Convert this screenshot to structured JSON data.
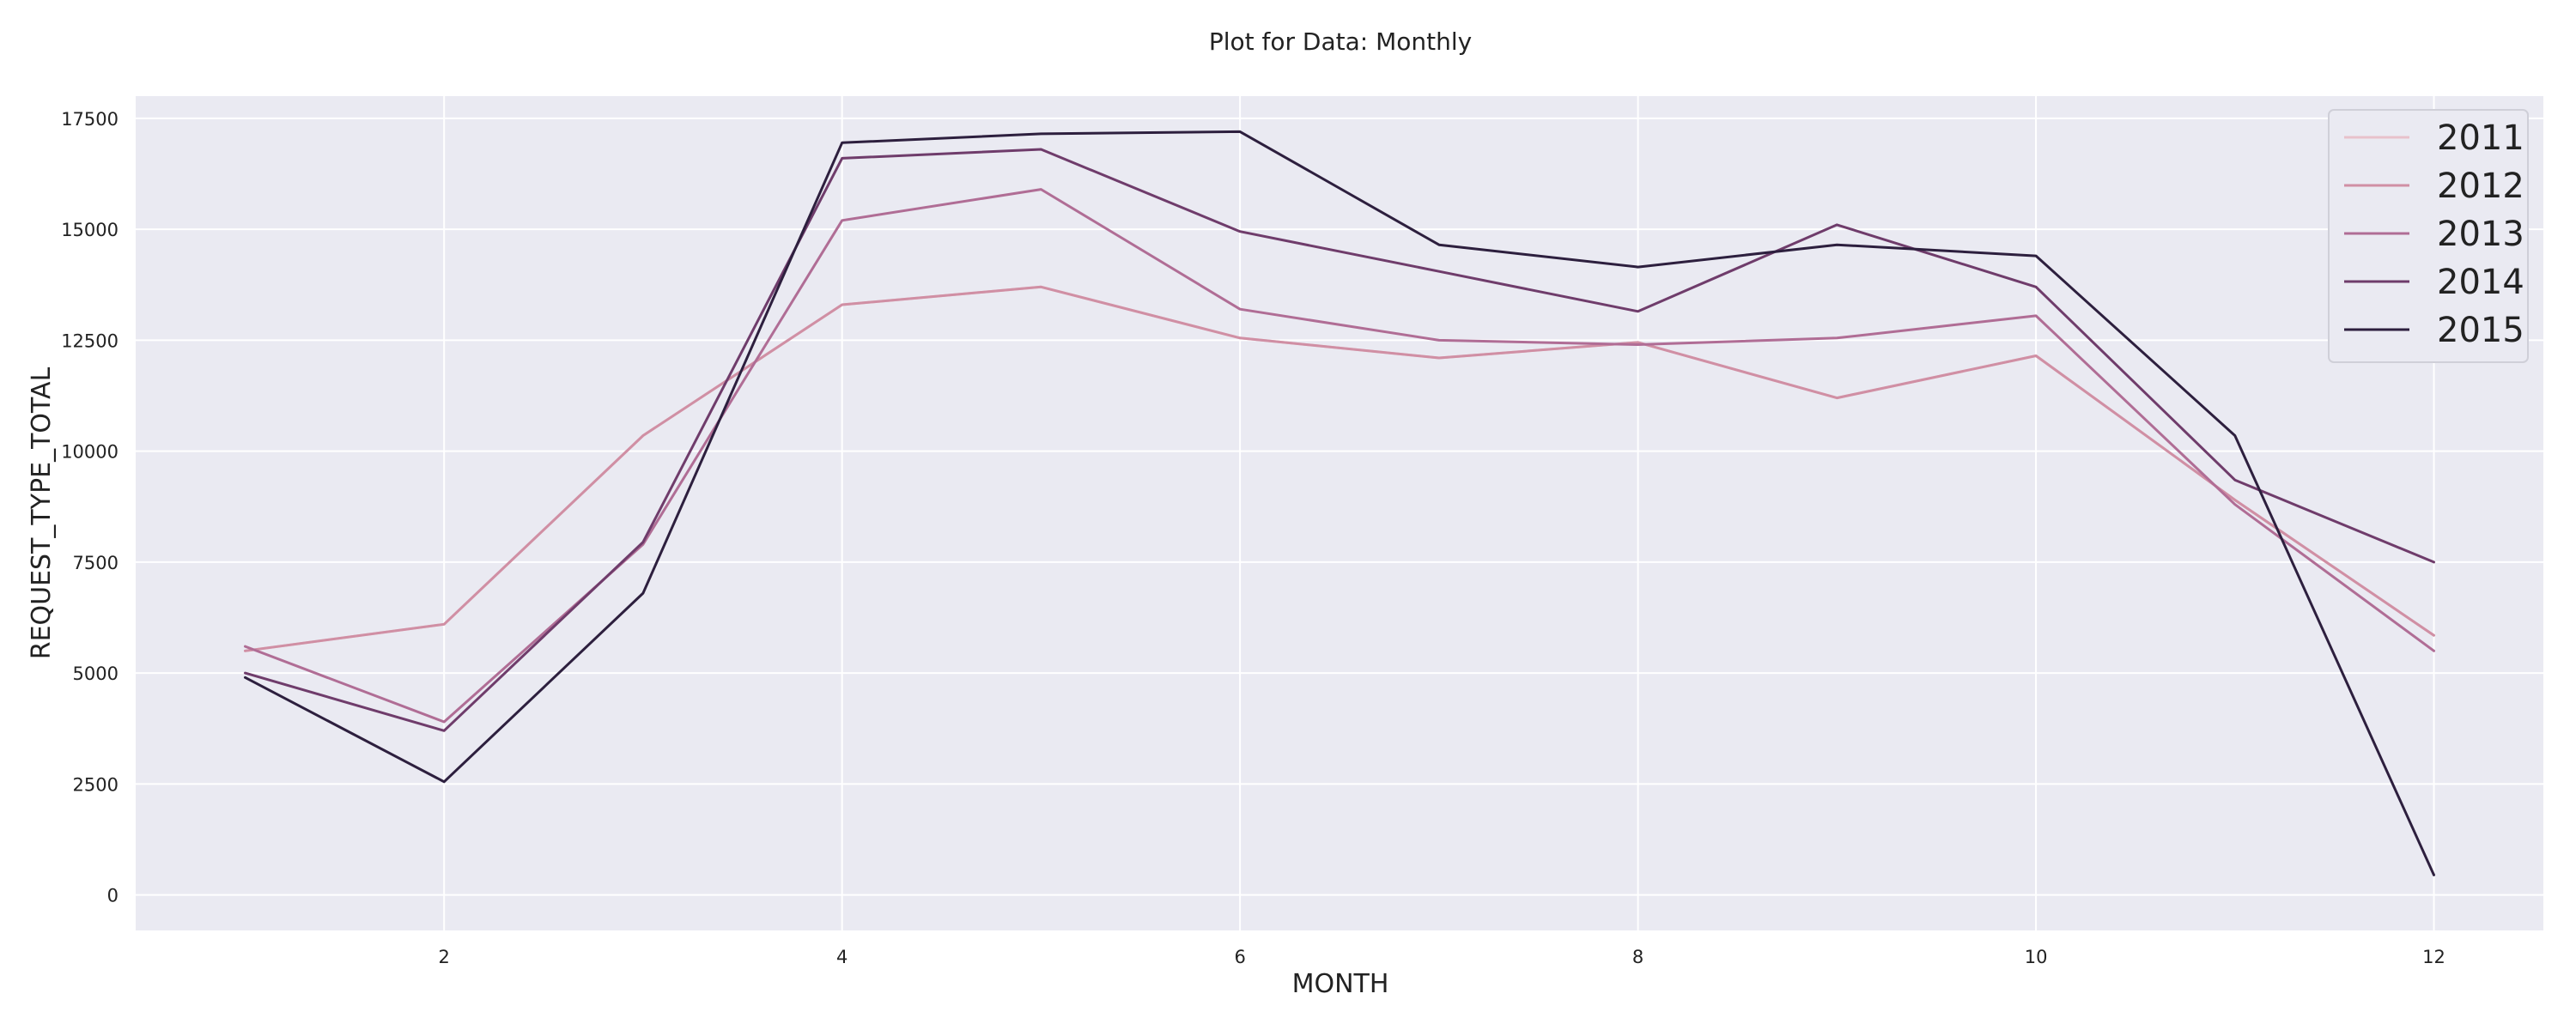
{
  "chart_data": {
    "type": "line",
    "title": "Plot for Data: Monthly",
    "xlabel": "MONTH",
    "ylabel": "REQUEST_TYPE_TOTAL",
    "x": [
      1,
      2,
      3,
      4,
      5,
      6,
      7,
      8,
      9,
      10,
      11,
      12
    ],
    "xlim": [
      0.45,
      12.55
    ],
    "ylim": [
      -800,
      18000
    ],
    "xticks": [
      2,
      4,
      6,
      8,
      10,
      12
    ],
    "yticks": [
      0,
      2500,
      5000,
      7500,
      10000,
      12500,
      15000,
      17500
    ],
    "grid": true,
    "legend_position": "top-right",
    "colors": {
      "plot_background": "#eaeaf2",
      "grid": "#ffffff",
      "axis_text": "#222222"
    },
    "series": [
      {
        "name": "2011",
        "color": "#e8c1cb",
        "values": [
          5500,
          6100,
          10350,
          13300,
          13700,
          12550,
          12100,
          12450,
          11200,
          12150,
          8900,
          5850
        ]
      },
      {
        "name": "2012",
        "color": "#d08fa4",
        "values": [
          5500,
          6100,
          10350,
          13300,
          13700,
          12550,
          12100,
          12450,
          11200,
          12150,
          8900,
          5850
        ]
      },
      {
        "name": "2013",
        "color": "#b06d95",
        "values": [
          5600,
          3900,
          7900,
          15200,
          15900,
          13200,
          12500,
          12400,
          12550,
          13050,
          8800,
          5500
        ]
      },
      {
        "name": "2014",
        "color": "#6f3c6b",
        "values": [
          5000,
          3700,
          7950,
          16600,
          16800,
          14950,
          14050,
          13150,
          15100,
          13700,
          9350,
          7500
        ]
      },
      {
        "name": "2015",
        "color": "#2d1f3e",
        "values": [
          4900,
          2550,
          6800,
          16950,
          17150,
          17200,
          14650,
          14150,
          14650,
          14400,
          10350,
          450
        ]
      }
    ]
  }
}
